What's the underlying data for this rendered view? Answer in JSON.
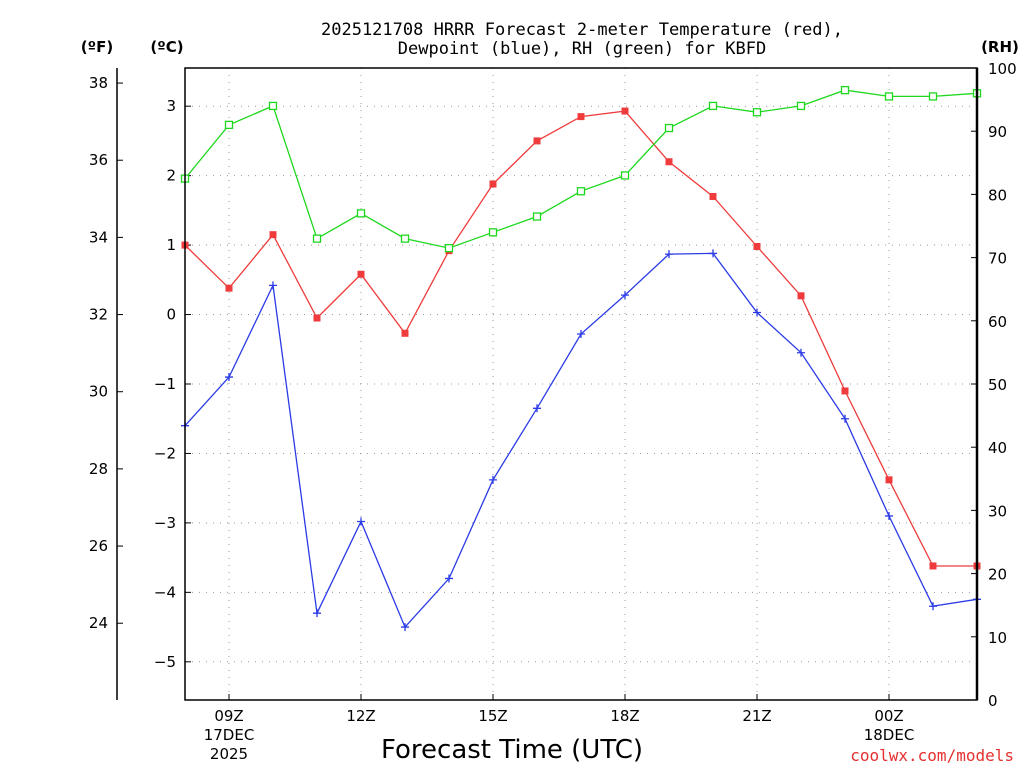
{
  "chart_data": {
    "type": "line",
    "title_lines": [
      "2025121708 HRRR Forecast 2-meter Temperature (red),",
      "Dewpoint (blue), RH (green) for KBFD"
    ],
    "units": {
      "fahrenheit": "(ºF)",
      "celsius": "(ºC)",
      "rh": "(RH)"
    },
    "xlabel": "Forecast Time (UTC)",
    "credit": "coolwx.com/models",
    "x_hours": [
      8,
      9,
      10,
      11,
      12,
      13,
      14,
      15,
      16,
      17,
      18,
      19,
      20,
      21,
      22,
      23,
      24,
      25,
      26
    ],
    "x_range": [
      8,
      26
    ],
    "x_ticks": [
      {
        "hour": 9,
        "lines": [
          "09Z",
          "17DEC",
          "2025"
        ]
      },
      {
        "hour": 12,
        "lines": [
          "12Z"
        ]
      },
      {
        "hour": 15,
        "lines": [
          "15Z"
        ]
      },
      {
        "hour": 18,
        "lines": [
          "18Z"
        ]
      },
      {
        "hour": 21,
        "lines": [
          "21Z"
        ]
      },
      {
        "hour": 24,
        "lines": [
          "00Z",
          "18DEC"
        ]
      }
    ],
    "celsius_range": [
      -5.55,
      3.55
    ],
    "celsius_ticks": [
      3,
      2,
      1,
      0,
      -1,
      -2,
      -3,
      -4,
      -5
    ],
    "fahrenheit_ticks": [
      38,
      36,
      34,
      32,
      30,
      28,
      26,
      24
    ],
    "rh_range": [
      0,
      100
    ],
    "rh_ticks": [
      100,
      90,
      80,
      70,
      60,
      50,
      40,
      30,
      20,
      10,
      0
    ],
    "series": [
      {
        "name": "2-meter Temperature",
        "unit": "C",
        "color": "#ef3b3b",
        "marker": "filled-square",
        "values": [
          1.0,
          0.38,
          1.15,
          -0.05,
          0.58,
          -0.27,
          0.92,
          1.88,
          2.5,
          2.85,
          2.93,
          2.2,
          1.7,
          0.98,
          0.27,
          -1.1,
          -2.38,
          -3.62,
          -3.62
        ]
      },
      {
        "name": "Dewpoint",
        "unit": "C",
        "color": "#2b3be6",
        "marker": "plus",
        "values": [
          -1.6,
          -0.9,
          0.42,
          -4.3,
          -2.98,
          -4.5,
          -3.8,
          -2.38,
          -1.35,
          -0.28,
          0.28,
          0.87,
          0.88,
          0.03,
          -0.55,
          -1.5,
          -2.9,
          -4.2,
          -4.1
        ]
      },
      {
        "name": "Relative Humidity",
        "unit": "%",
        "color": "#1ed81e",
        "marker": "open-square",
        "values": [
          82.5,
          91,
          94,
          73,
          77,
          73,
          71.5,
          74,
          76.5,
          80.5,
          83,
          90.5,
          94,
          93,
          94,
          96.5,
          95.5,
          95.5,
          96
        ]
      }
    ]
  }
}
